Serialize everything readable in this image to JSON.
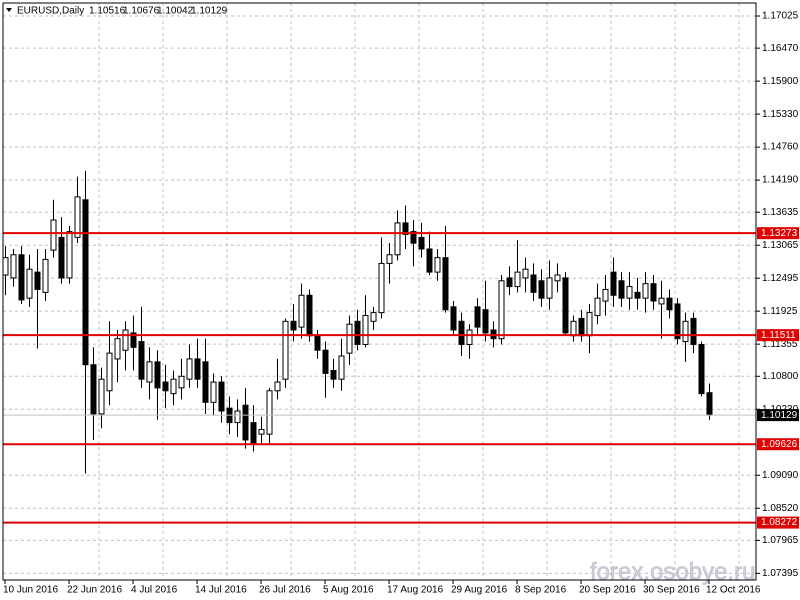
{
  "chart_data": {
    "type": "candlestick",
    "title": "EURUSD,Daily",
    "watermark": "forex.osobye.ru",
    "categories": [
      "10 Jun 2016",
      null,
      null,
      null,
      null,
      null,
      null,
      null,
      "22 Jun 2016",
      null,
      null,
      null,
      null,
      null,
      null,
      null,
      "4 Jul 2016",
      null,
      null,
      null,
      null,
      null,
      null,
      null,
      "14 Jul 2016",
      null,
      null,
      null,
      null,
      null,
      null,
      null,
      "26 Jul 2016",
      null,
      null,
      null,
      null,
      null,
      null,
      null,
      "5 Aug 2016",
      null,
      null,
      null,
      null,
      null,
      null,
      null,
      "17 Aug 2016",
      null,
      null,
      null,
      null,
      null,
      null,
      null,
      "29 Aug 2016",
      null,
      null,
      null,
      null,
      null,
      null,
      null,
      "8 Sep 2016",
      null,
      null,
      null,
      null,
      null,
      null,
      null,
      "20 Sep 2016",
      null,
      null,
      null,
      null,
      null,
      null,
      null,
      "30 Sep 2016",
      null,
      null,
      null,
      null,
      null,
      null,
      null,
      "12 Oct 2016"
    ],
    "ohlc": [
      [
        1.1255,
        1.1305,
        1.122,
        1.1285
      ],
      [
        1.125,
        1.13,
        1.1235,
        1.129
      ],
      [
        1.129,
        1.1305,
        1.1205,
        1.1212
      ],
      [
        1.1215,
        1.129,
        1.12,
        1.1265
      ],
      [
        1.126,
        1.13,
        1.1128,
        1.123
      ],
      [
        1.1225,
        1.13,
        1.121,
        1.1282
      ],
      [
        1.1298,
        1.1385,
        1.1285,
        1.135
      ],
      [
        1.132,
        1.1355,
        1.124,
        1.125
      ],
      [
        1.125,
        1.134,
        1.124,
        1.133
      ],
      [
        1.132,
        1.1425,
        1.131,
        1.139
      ],
      [
        1.1385,
        1.1435,
        1.0912,
        1.11
      ],
      [
        1.11,
        1.113,
        1.097,
        1.1015
      ],
      [
        1.1015,
        1.1095,
        1.099,
        1.1075
      ],
      [
        1.1055,
        1.1175,
        1.103,
        1.112
      ],
      [
        1.111,
        1.116,
        1.107,
        1.1145
      ],
      [
        1.1125,
        1.1175,
        1.109,
        1.116
      ],
      [
        1.1155,
        1.1185,
        1.109,
        1.113
      ],
      [
        1.114,
        1.12,
        1.106,
        1.1075
      ],
      [
        1.107,
        1.113,
        1.104,
        1.1105
      ],
      [
        1.1105,
        1.1125,
        1.1005,
        1.106
      ],
      [
        1.107,
        1.11,
        1.1025,
        1.1055
      ],
      [
        1.105,
        1.109,
        1.103,
        1.1075
      ],
      [
        1.106,
        1.111,
        1.104,
        1.108
      ],
      [
        1.1075,
        1.1135,
        1.106,
        1.111
      ],
      [
        1.111,
        1.1145,
        1.106,
        1.1075
      ],
      [
        1.1105,
        1.1145,
        1.1015,
        1.1035
      ],
      [
        1.1035,
        1.1085,
        1.1012,
        1.107
      ],
      [
        1.107,
        1.108,
        1.1,
        1.102
      ],
      [
        1.1025,
        1.1045,
        1.098,
        1.1
      ],
      [
        1.1,
        1.104,
        1.0975,
        1.102
      ],
      [
        1.103,
        1.106,
        1.0955,
        1.097
      ],
      [
        1.1,
        1.103,
        1.095,
        1.0965
      ],
      [
        1.098,
        1.101,
        1.0962,
        1.0988
      ],
      [
        1.098,
        1.106,
        1.0962,
        1.1055
      ],
      [
        1.1055,
        1.111,
        1.104,
        1.107
      ],
      [
        1.1075,
        1.118,
        1.106,
        1.1175
      ],
      [
        1.1175,
        1.1205,
        1.114,
        1.116
      ],
      [
        1.1165,
        1.124,
        1.1145,
        1.122
      ],
      [
        1.122,
        1.123,
        1.114,
        1.115
      ],
      [
        1.115,
        1.116,
        1.111,
        1.1125
      ],
      [
        1.1125,
        1.114,
        1.1043,
        1.1085
      ],
      [
        1.109,
        1.111,
        1.106,
        1.1075
      ],
      [
        1.1075,
        1.1145,
        1.1055,
        1.1115
      ],
      [
        1.112,
        1.1185,
        1.11,
        1.117
      ],
      [
        1.1175,
        1.1195,
        1.1125,
        1.1135
      ],
      [
        1.1135,
        1.122,
        1.113,
        1.1185
      ],
      [
        1.1175,
        1.12,
        1.116,
        1.119
      ],
      [
        1.119,
        1.132,
        1.118,
        1.1275
      ],
      [
        1.1275,
        1.131,
        1.124,
        1.129
      ],
      [
        1.129,
        1.1367,
        1.128,
        1.1345
      ],
      [
        1.1345,
        1.1375,
        1.13,
        1.1325
      ],
      [
        1.133,
        1.135,
        1.127,
        1.131
      ],
      [
        1.132,
        1.1345,
        1.1285,
        1.13
      ],
      [
        1.13,
        1.133,
        1.1255,
        1.126
      ],
      [
        1.126,
        1.13,
        1.1245,
        1.1285
      ],
      [
        1.1285,
        1.134,
        1.119,
        1.1195
      ],
      [
        1.12,
        1.121,
        1.115,
        1.116
      ],
      [
        1.1175,
        1.119,
        1.1115,
        1.1135
      ],
      [
        1.1135,
        1.117,
        1.111,
        1.116
      ],
      [
        1.12,
        1.1215,
        1.115,
        1.1165
      ],
      [
        1.1195,
        1.1245,
        1.114,
        1.1155
      ],
      [
        1.116,
        1.1175,
        1.113,
        1.1145
      ],
      [
        1.1145,
        1.1255,
        1.1135,
        1.1245
      ],
      [
        1.125,
        1.127,
        1.122,
        1.1235
      ],
      [
        1.1235,
        1.1315,
        1.1225,
        1.126
      ],
      [
        1.125,
        1.1285,
        1.1225,
        1.1265
      ],
      [
        1.1255,
        1.1275,
        1.121,
        1.1225
      ],
      [
        1.1245,
        1.1265,
        1.12,
        1.1215
      ],
      [
        1.1215,
        1.128,
        1.1195,
        1.125
      ],
      [
        1.1245,
        1.1275,
        1.1225,
        1.1255
      ],
      [
        1.125,
        1.126,
        1.115,
        1.1155
      ],
      [
        1.115,
        1.1185,
        1.114,
        1.1175
      ],
      [
        1.118,
        1.1195,
        1.114,
        1.115
      ],
      [
        1.115,
        1.1205,
        1.112,
        1.119
      ],
      [
        1.1185,
        1.124,
        1.117,
        1.1215
      ],
      [
        1.121,
        1.1255,
        1.1185,
        1.123
      ],
      [
        1.126,
        1.1285,
        1.12,
        1.122
      ],
      [
        1.1245,
        1.126,
        1.12,
        1.1215
      ],
      [
        1.1215,
        1.126,
        1.1195,
        1.1235
      ],
      [
        1.1225,
        1.125,
        1.1195,
        1.1215
      ],
      [
        1.1215,
        1.126,
        1.119,
        1.124
      ],
      [
        1.124,
        1.1255,
        1.1195,
        1.121
      ],
      [
        1.1205,
        1.1245,
        1.1145,
        1.1215
      ],
      [
        1.1215,
        1.123,
        1.118,
        1.1195
      ],
      [
        1.1205,
        1.1215,
        1.1135,
        1.1145
      ],
      [
        1.114,
        1.119,
        1.1105,
        1.1175
      ],
      [
        1.118,
        1.119,
        1.112,
        1.1135
      ],
      [
        1.1135,
        1.114,
        1.1045,
        1.105
      ],
      [
        1.10516,
        1.10676,
        1.10042,
        1.10129
      ]
    ],
    "up_color": "#ffffff",
    "down_color": "#000000",
    "level_color": "#e00000",
    "levels": [
      1.13273,
      1.11511,
      1.09626,
      1.08272
    ],
    "ylim": [
      1.0728,
      1.1725
    ],
    "yticks": [
      1.17025,
      {
        "value": 1.1647,
        "label": "1.16470"
      },
      {
        "value": 1.159,
        "label": "1.15900"
      },
      {
        "value": 1.1533,
        "label": "1.15330"
      },
      {
        "value": 1.1476,
        "label": "1.14760"
      },
      {
        "value": 1.1419,
        "label": "1.14190"
      },
      1.13635,
      1.13065,
      1.12495,
      1.11925,
      1.11355,
      {
        "value": 1.108,
        "label": "1.10800"
      },
      {
        "value": 1.1023,
        "label": "1.10230"
      },
      {
        "value": 1.0909,
        "label": "1.09090"
      },
      {
        "value": 1.0852,
        "label": "1.08520"
      },
      1.07965,
      1.07395
    ],
    "grid": true
  }
}
